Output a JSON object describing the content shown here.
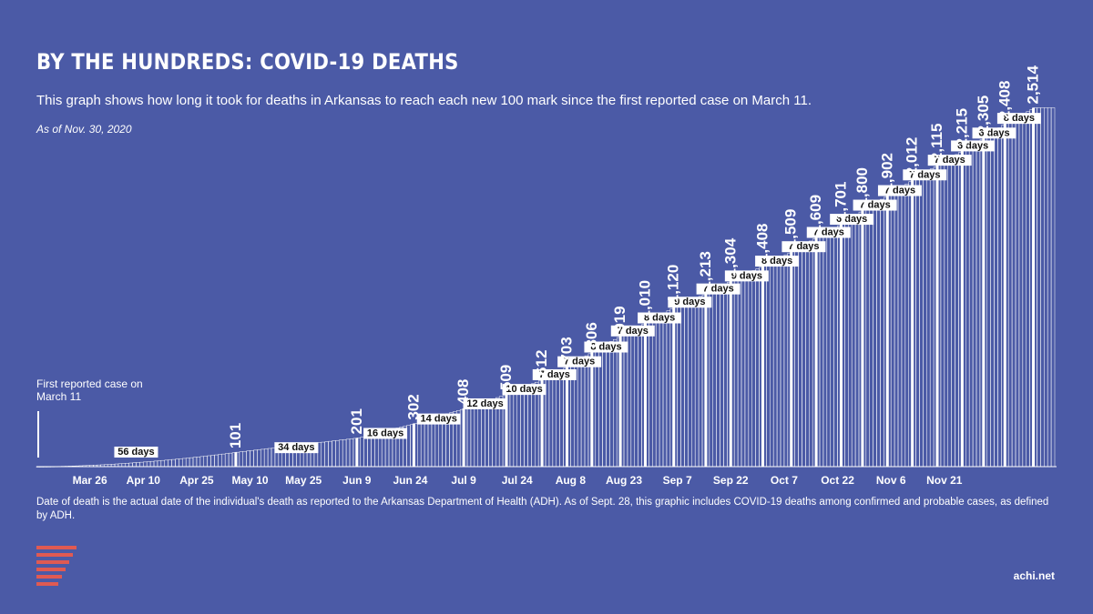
{
  "title": "BY THE HUNDREDS: COVID-19 DEATHS",
  "subtitle": "This graph shows how long it took for deaths in Arkansas to reach each new 100 mark since the first reported case on March 11.",
  "as_of": "As of Nov. 30, 2020",
  "first_case_note": "First reported case on March 11",
  "footnote": "Date of death is the actual date of the individual's death as reported to the Arkansas Department of Health (ADH). As of  Sept. 28, this graphic includes COVID-19 deaths among confirmed and probable cases, as defined by ADH.",
  "site": "achi.net",
  "colors": {
    "background": "#4b5aa6",
    "bar_outline": "#ffffff",
    "logo": "#e05a52",
    "label_box": "#ffffff"
  },
  "chart_data": {
    "type": "bar",
    "x_start": "2020-03-11",
    "x_end": "2020-11-30",
    "xlabel": "",
    "ylabel": "",
    "ylim": [
      0,
      2600
    ],
    "grid": false,
    "legend": "none",
    "x_ticks": [
      "Mar 26",
      "Apr 10",
      "Apr 25",
      "May 10",
      "May 25",
      "Jun 9",
      "Jun 24",
      "Jul 9",
      "Jul 24",
      "Aug 8",
      "Aug 23",
      "Sep 7",
      "Sep 22",
      "Oct 7",
      "Oct 22",
      "Nov 6",
      "Nov 21"
    ],
    "milestones": [
      {
        "date": "2020-03-11",
        "deaths": 0,
        "label": ""
      },
      {
        "date": "2020-05-06",
        "deaths": 101,
        "label": "101",
        "days": "56 days"
      },
      {
        "date": "2020-06-09",
        "deaths": 201,
        "label": "201",
        "days": "34 days"
      },
      {
        "date": "2020-06-25",
        "deaths": 302,
        "label": "302",
        "days": "16 days"
      },
      {
        "date": "2020-07-09",
        "deaths": 408,
        "label": "408",
        "days": "14 days"
      },
      {
        "date": "2020-07-21",
        "deaths": 509,
        "label": "509",
        "days": "12 days"
      },
      {
        "date": "2020-07-31",
        "deaths": 612,
        "label": "612",
        "days": "10 days"
      },
      {
        "date": "2020-08-07",
        "deaths": 703,
        "label": "703",
        "days": "7 days"
      },
      {
        "date": "2020-08-14",
        "deaths": 806,
        "label": "806",
        "days": "7 days"
      },
      {
        "date": "2020-08-22",
        "deaths": 919,
        "label": "919",
        "days": "8 days"
      },
      {
        "date": "2020-08-29",
        "deaths": 1010,
        "label": "1,010",
        "days": "7 days"
      },
      {
        "date": "2020-09-06",
        "deaths": 1120,
        "label": "1,120",
        "days": "8 days"
      },
      {
        "date": "2020-09-15",
        "deaths": 1213,
        "label": "1,213",
        "days": "9 days"
      },
      {
        "date": "2020-09-22",
        "deaths": 1304,
        "label": "1,304",
        "days": "7 days"
      },
      {
        "date": "2020-10-01",
        "deaths": 1408,
        "label": "1,408",
        "days": "9 days"
      },
      {
        "date": "2020-10-09",
        "deaths": 1509,
        "label": "1,509",
        "days": "8 days"
      },
      {
        "date": "2020-10-16",
        "deaths": 1609,
        "label": "1,609",
        "days": "7 days"
      },
      {
        "date": "2020-10-23",
        "deaths": 1701,
        "label": "1,701",
        "days": "7 days"
      },
      {
        "date": "2020-10-29",
        "deaths": 1800,
        "label": "1,800",
        "days": "6 days"
      },
      {
        "date": "2020-11-05",
        "deaths": 1902,
        "label": "1,902",
        "days": "7 days"
      },
      {
        "date": "2020-11-12",
        "deaths": 2012,
        "label": "2,012",
        "days": "7 days"
      },
      {
        "date": "2020-11-19",
        "deaths": 2115,
        "label": "2,115",
        "days": "7 days"
      },
      {
        "date": "2020-11-26",
        "deaths": 2215,
        "label": "2,215",
        "days": "7 days"
      },
      {
        "date": "2020-12-02",
        "deaths": 2305,
        "label": "2,305",
        "days": "6 days"
      },
      {
        "date": "2020-12-08",
        "deaths": 2408,
        "label": "2,408",
        "days": "6 days"
      },
      {
        "date": "2020-12-16",
        "deaths": 2514,
        "label": "2,514",
        "days": "8 days"
      }
    ]
  }
}
